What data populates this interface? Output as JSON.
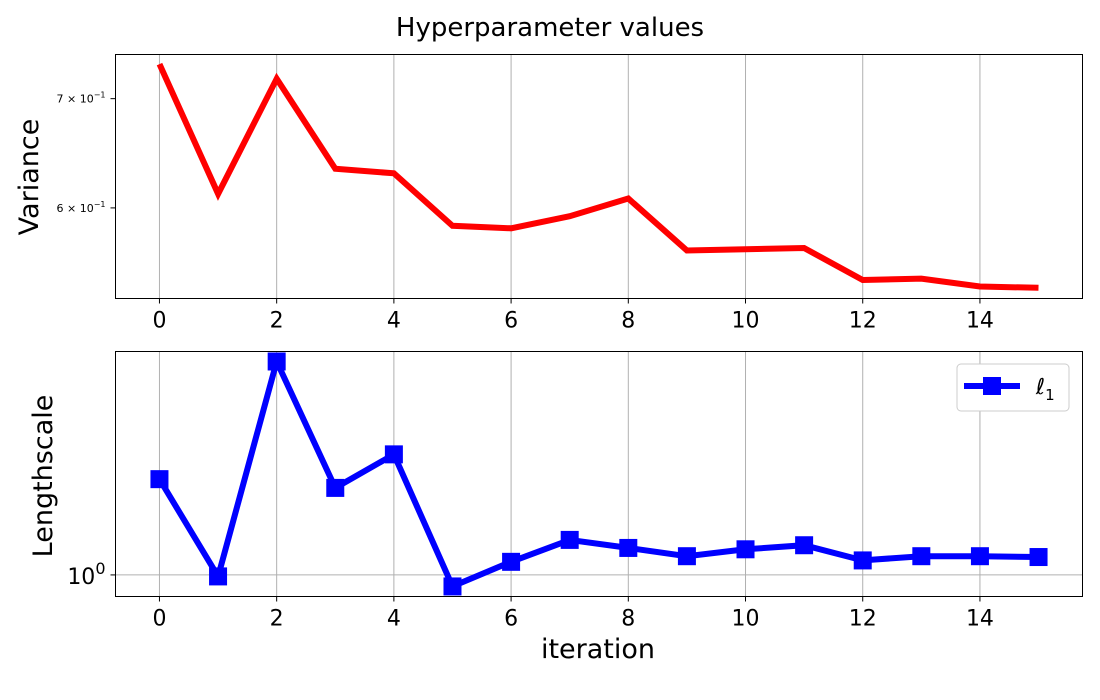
{
  "chart_data": {
    "title": "Hyperparameter values",
    "panels": [
      {
        "type": "line",
        "ylabel": "Variance",
        "xlabel": "",
        "yscale": "log",
        "x": [
          0,
          1,
          2,
          3,
          4,
          5,
          6,
          7,
          8,
          9,
          10,
          11,
          12,
          13,
          14,
          15
        ],
        "series": [
          {
            "values": [
              0.735,
              0.612,
              0.72,
              0.634,
              0.63,
              0.585,
              0.583,
              0.593,
              0.608,
              0.565,
              0.566,
              0.567,
              0.542,
              0.543,
              0.537,
              0.536
            ],
            "color": "#ff0000",
            "marker": "none"
          }
        ],
        "xticks": [
          0,
          2,
          4,
          6,
          8,
          10,
          12,
          14
        ],
        "xtick_labels": [
          "0",
          "2",
          "4",
          "6",
          "8",
          "10",
          "12",
          "14"
        ],
        "yticks": [
          0.7,
          0.6
        ],
        "ytick_labels": [
          {
            "base": "7 × 10",
            "exp": "−1"
          },
          {
            "base": "6 × 10",
            "exp": "−1"
          }
        ],
        "xlim": [
          -0.75,
          15.75
        ],
        "ylim": [
          0.528,
          0.745
        ],
        "grid": "x"
      },
      {
        "type": "line",
        "ylabel": "Lengthscale",
        "xlabel": "iteration",
        "yscale": "log",
        "x": [
          0,
          1,
          2,
          3,
          4,
          5,
          6,
          7,
          8,
          9,
          10,
          11,
          12,
          13,
          14,
          15
        ],
        "series": [
          {
            "name": "ℓ",
            "name_sub": "1",
            "values": [
              1.38,
              0.995,
              2.05,
              1.34,
              1.5,
              0.962,
              1.045,
              1.125,
              1.095,
              1.065,
              1.09,
              1.105,
              1.05,
              1.065,
              1.065,
              1.062
            ],
            "color": "#0000ff",
            "marker": "square"
          }
        ],
        "xticks": [
          0,
          2,
          4,
          6,
          8,
          10,
          12,
          14
        ],
        "xtick_labels": [
          "0",
          "2",
          "4",
          "6",
          "8",
          "10",
          "12",
          "14"
        ],
        "yticks": [
          1.0
        ],
        "ytick_labels": [
          {
            "base": "10",
            "exp": "0"
          }
        ],
        "xlim": [
          -0.75,
          15.75
        ],
        "ylim": [
          0.93,
          2.12
        ],
        "grid": "both",
        "legend": "top-right"
      }
    ]
  }
}
